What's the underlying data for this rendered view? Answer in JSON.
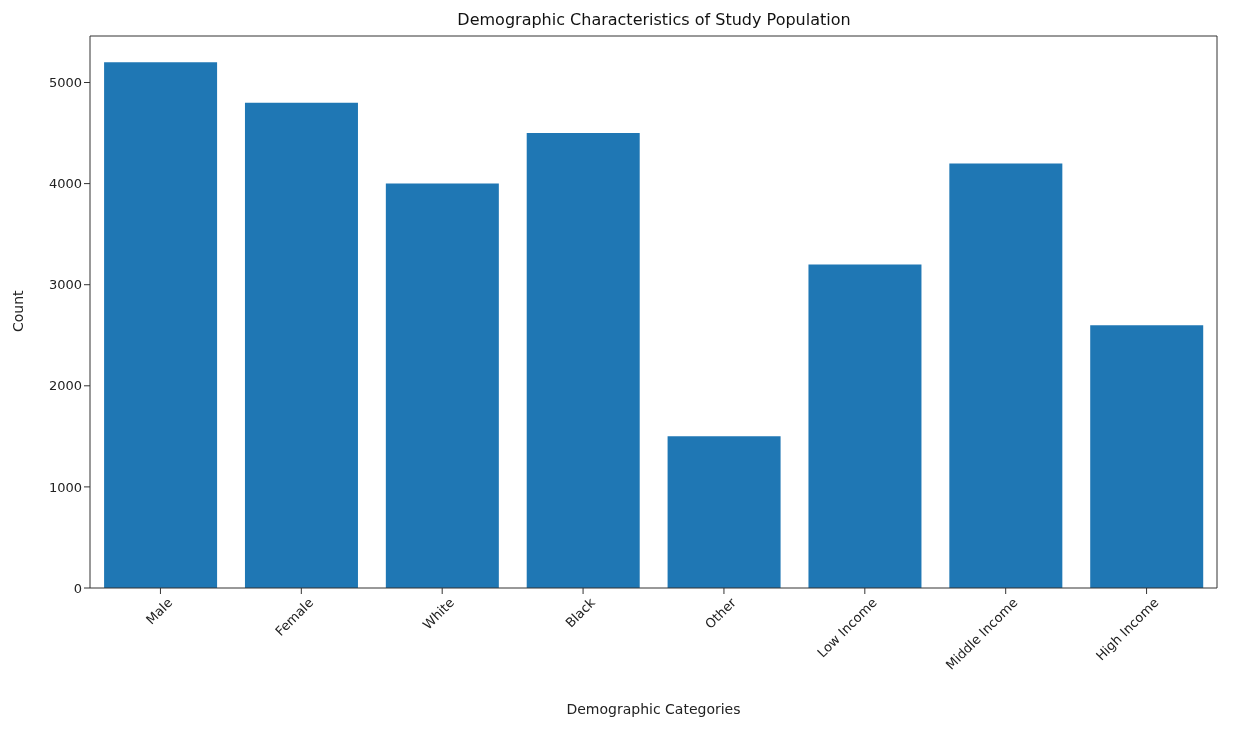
{
  "chart_data": {
    "type": "bar",
    "title": "Demographic Characteristics of Study Population",
    "xlabel": "Demographic Categories",
    "ylabel": "Count",
    "categories": [
      "Male",
      "Female",
      "White",
      "Black",
      "Other",
      "Low Income",
      "Middle Income",
      "High Income"
    ],
    "values": [
      5200,
      4800,
      4000,
      4500,
      1500,
      3200,
      4200,
      2600
    ],
    "color": "#1f77b4",
    "ylim": [
      0,
      5460
    ],
    "yticks": [
      0,
      1000,
      2000,
      3000,
      4000,
      5000
    ],
    "grid": false
  }
}
